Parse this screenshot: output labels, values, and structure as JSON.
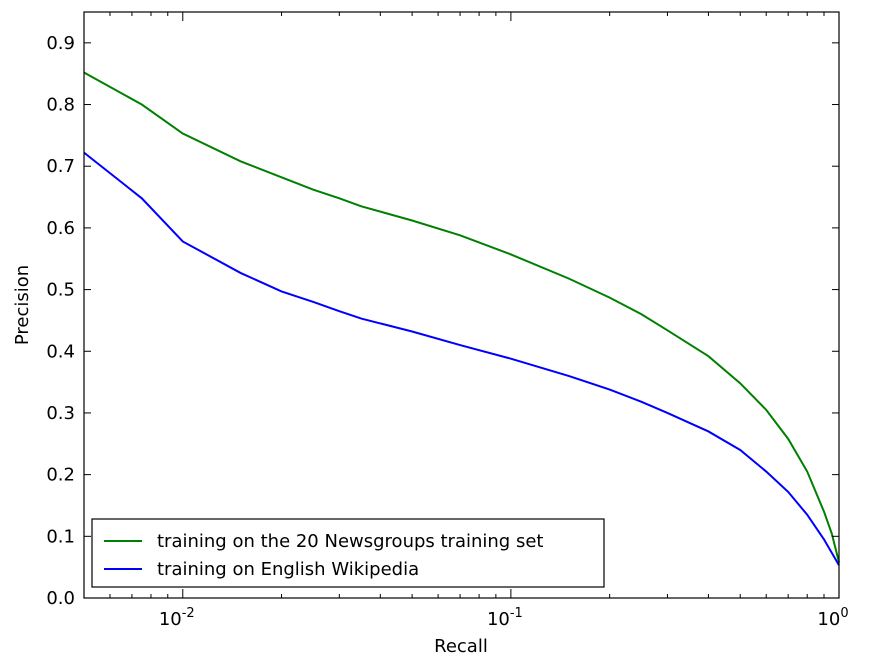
{
  "chart_data": {
    "type": "line",
    "xlabel": "Recall",
    "ylabel": "Precision",
    "xscale": "log",
    "xlim": [
      0.005,
      1.0
    ],
    "ylim": [
      0.0,
      0.95
    ],
    "grid": false,
    "legend_position": "lower-left",
    "x_ticks": [
      {
        "value": 0.01,
        "base": "10",
        "exp": "-2"
      },
      {
        "value": 0.1,
        "base": "10",
        "exp": "-1"
      },
      {
        "value": 1.0,
        "base": "10",
        "exp": "0"
      }
    ],
    "y_ticks": [
      {
        "value": 0.0,
        "label": "0.0"
      },
      {
        "value": 0.1,
        "label": "0.1"
      },
      {
        "value": 0.2,
        "label": "0.2"
      },
      {
        "value": 0.3,
        "label": "0.3"
      },
      {
        "value": 0.4,
        "label": "0.4"
      },
      {
        "value": 0.5,
        "label": "0.5"
      },
      {
        "value": 0.6,
        "label": "0.6"
      },
      {
        "value": 0.7,
        "label": "0.7"
      },
      {
        "value": 0.8,
        "label": "0.8"
      },
      {
        "value": 0.9,
        "label": "0.9"
      }
    ],
    "series": [
      {
        "name": "training on the 20 Newsgroups training set",
        "color": "#008000",
        "points": [
          [
            0.005,
            0.852
          ],
          [
            0.0075,
            0.8
          ],
          [
            0.01,
            0.753
          ],
          [
            0.015,
            0.708
          ],
          [
            0.02,
            0.682
          ],
          [
            0.025,
            0.662
          ],
          [
            0.03,
            0.648
          ],
          [
            0.035,
            0.635
          ],
          [
            0.05,
            0.612
          ],
          [
            0.07,
            0.588
          ],
          [
            0.1,
            0.557
          ],
          [
            0.15,
            0.518
          ],
          [
            0.2,
            0.487
          ],
          [
            0.25,
            0.46
          ],
          [
            0.3,
            0.434
          ],
          [
            0.4,
            0.392
          ],
          [
            0.5,
            0.348
          ],
          [
            0.6,
            0.305
          ],
          [
            0.7,
            0.258
          ],
          [
            0.8,
            0.205
          ],
          [
            0.9,
            0.14
          ],
          [
            0.95,
            0.105
          ],
          [
            1.0,
            0.058
          ]
        ]
      },
      {
        "name": "training on English Wikipedia",
        "color": "#0000ff",
        "points": [
          [
            0.005,
            0.722
          ],
          [
            0.0075,
            0.648
          ],
          [
            0.01,
            0.578
          ],
          [
            0.015,
            0.527
          ],
          [
            0.02,
            0.497
          ],
          [
            0.025,
            0.48
          ],
          [
            0.03,
            0.465
          ],
          [
            0.035,
            0.453
          ],
          [
            0.05,
            0.432
          ],
          [
            0.07,
            0.41
          ],
          [
            0.1,
            0.388
          ],
          [
            0.15,
            0.36
          ],
          [
            0.2,
            0.338
          ],
          [
            0.25,
            0.318
          ],
          [
            0.3,
            0.3
          ],
          [
            0.4,
            0.27
          ],
          [
            0.5,
            0.24
          ],
          [
            0.6,
            0.205
          ],
          [
            0.7,
            0.172
          ],
          [
            0.8,
            0.135
          ],
          [
            0.9,
            0.095
          ],
          [
            1.0,
            0.053
          ]
        ]
      }
    ]
  }
}
